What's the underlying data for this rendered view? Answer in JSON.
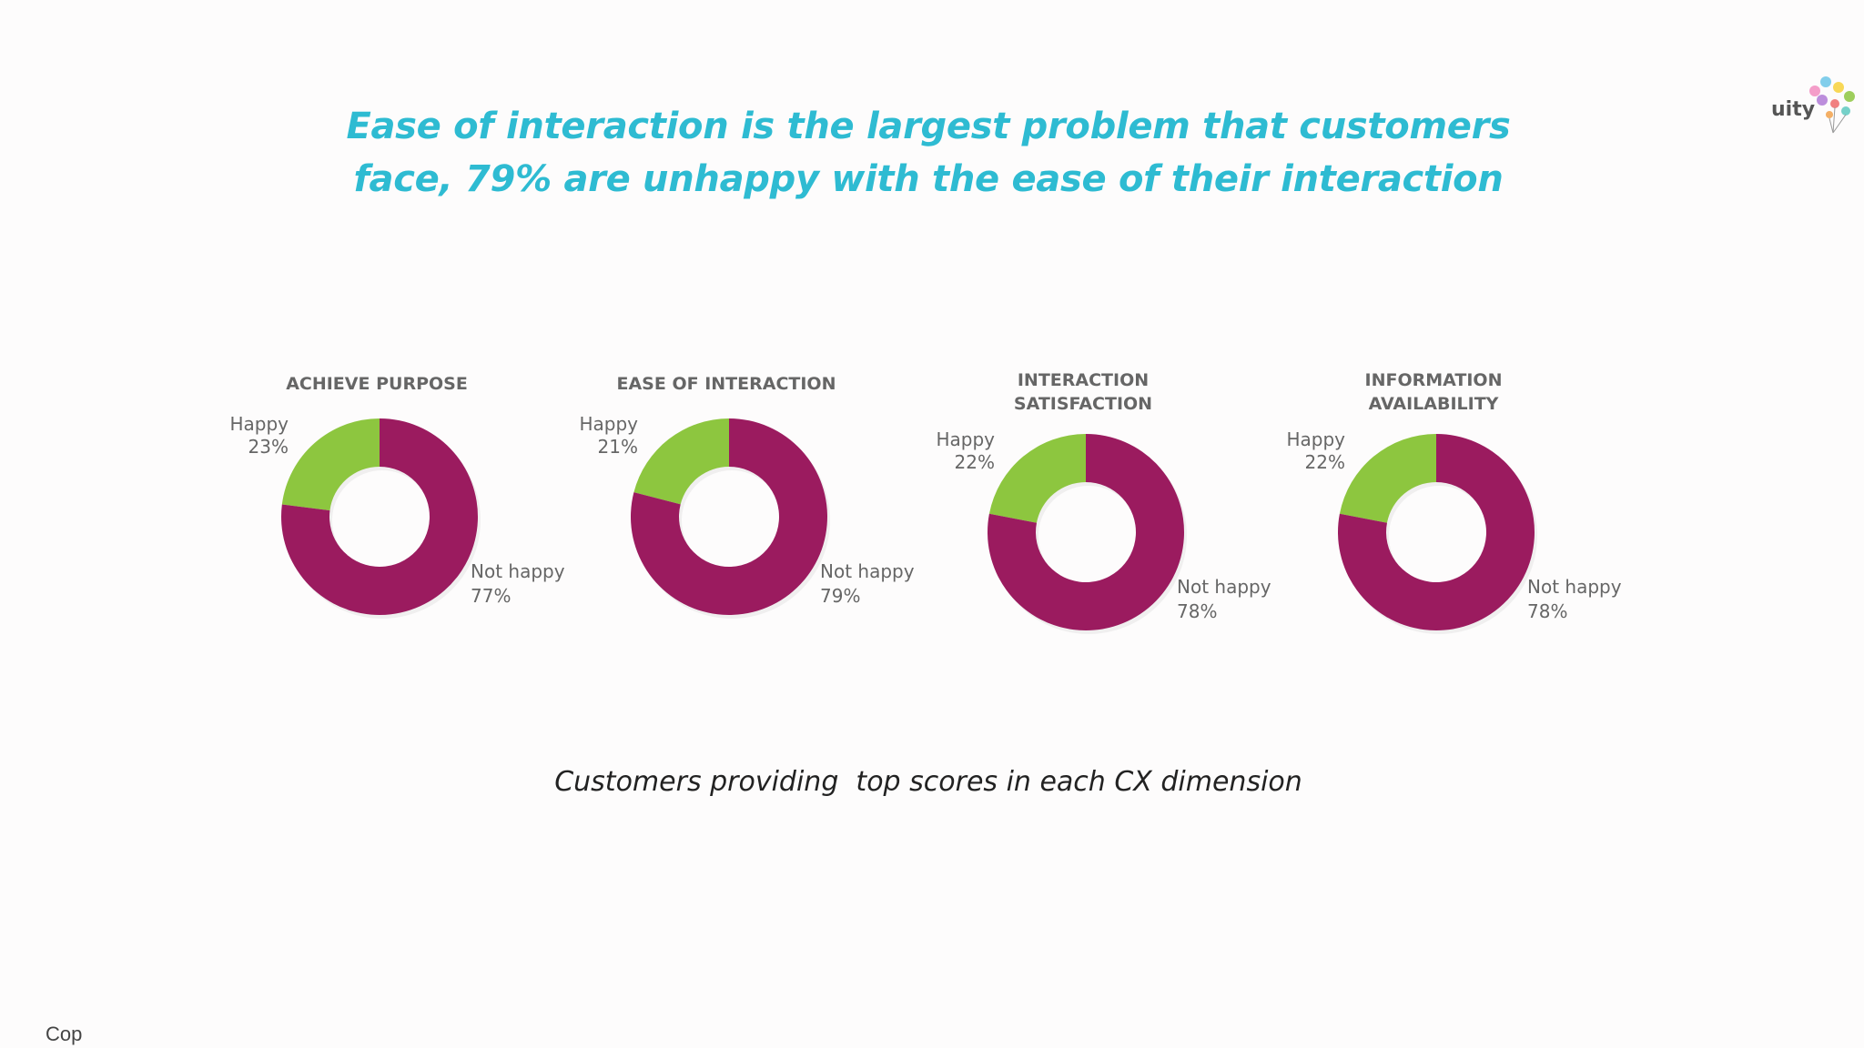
{
  "headline": {
    "line1": "Ease of interaction is the largest problem that customers",
    "line2": "face, 79% are unhappy with the ease of their interaction"
  },
  "caption": "Customers providing  top scores in each CX dimension",
  "copyright": "Cop",
  "logo": {
    "text": "uity",
    "icon": "balloon-cluster-logo"
  },
  "colors": {
    "happy": "#8dc63f",
    "not_happy": "#9b1b5f",
    "headline": "#2ebbd2"
  },
  "chart_data": [
    {
      "type": "pie",
      "title": [
        "ACHIEVE PURPOSE"
      ],
      "categories": [
        "Happy",
        "Not happy"
      ],
      "values": [
        23,
        77
      ],
      "labels": [
        [
          "Happy",
          "23%"
        ],
        [
          "Not happy",
          "77%"
        ]
      ]
    },
    {
      "type": "pie",
      "title": [
        "EASE OF INTERACTION"
      ],
      "categories": [
        "Happy",
        "Not happy"
      ],
      "values": [
        21,
        79
      ],
      "labels": [
        [
          "Happy",
          "21%"
        ],
        [
          "Not happy",
          "79%"
        ]
      ]
    },
    {
      "type": "pie",
      "title": [
        "INTERACTION",
        "SATISFACTION"
      ],
      "categories": [
        "Happy",
        "Not happy"
      ],
      "values": [
        22,
        78
      ],
      "labels": [
        [
          "Happy",
          "22%"
        ],
        [
          "Not happy",
          "78%"
        ]
      ]
    },
    {
      "type": "pie",
      "title": [
        "INFORMATION",
        "AVAILABILITY"
      ],
      "categories": [
        "Happy",
        "Not happy"
      ],
      "values": [
        22,
        78
      ],
      "labels": [
        [
          "Happy",
          "22%"
        ],
        [
          "Not happy",
          "78%"
        ]
      ]
    }
  ]
}
